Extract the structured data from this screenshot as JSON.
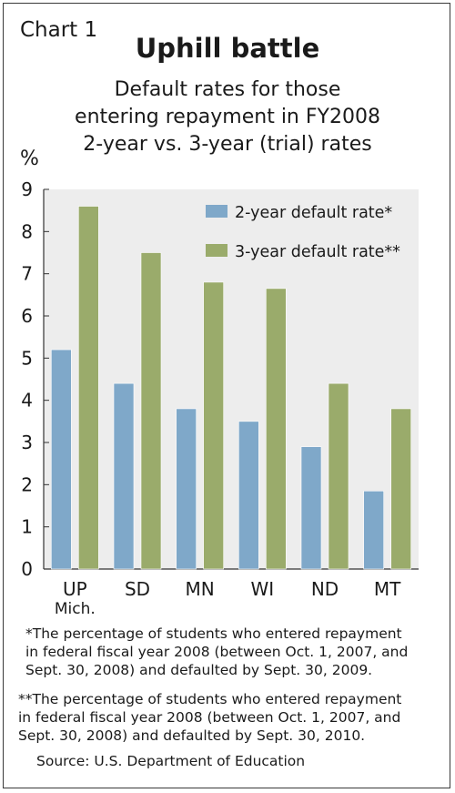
{
  "header": {
    "chart_number": "Chart 1",
    "title": "Uphill battle",
    "subtitle_lines": [
      "Default rates for those",
      "entering repayment in FY2008",
      "2-year vs. 3-year (trial) rates"
    ],
    "unit": "%"
  },
  "chart_data": {
    "type": "bar",
    "categories": [
      "UP Mich.",
      "SD",
      "MN",
      "WI",
      "ND",
      "MT"
    ],
    "category_lines": [
      [
        "UP",
        "Mich."
      ],
      [
        "SD"
      ],
      [
        "MN"
      ],
      [
        "WI"
      ],
      [
        "ND"
      ],
      [
        "MT"
      ]
    ],
    "series": [
      {
        "name": "2-year default rate*",
        "values": [
          5.2,
          4.4,
          3.8,
          3.5,
          2.9,
          1.85
        ]
      },
      {
        "name": "3-year default rate**",
        "values": [
          8.6,
          7.5,
          6.8,
          6.65,
          4.4,
          3.8
        ]
      }
    ],
    "colors": {
      "series1": "#7fa8c9",
      "series2": "#9aab6b",
      "plot_bg": "#ededed",
      "frame": "#3a3a3a"
    },
    "ylim": [
      0,
      9
    ],
    "yticks": [
      "0",
      "1",
      "2",
      "3",
      "4",
      "5",
      "6",
      "7",
      "8",
      "9"
    ],
    "grid": false,
    "legend_position": "top-right"
  },
  "footnotes": {
    "note1_lines": [
      "*The percentage of students who entered repayment",
      "in federal fiscal year 2008 (between Oct. 1, 2007, and",
      "Sept. 30, 2008) and defaulted by Sept. 30, 2009."
    ],
    "note2_lines": [
      "**The percentage of students who entered repayment",
      "in federal fiscal year 2008 (between Oct. 1, 2007, and",
      "Sept. 30, 2008) and defaulted by Sept. 30, 2010."
    ],
    "source": "Source: U.S. Department of Education"
  }
}
